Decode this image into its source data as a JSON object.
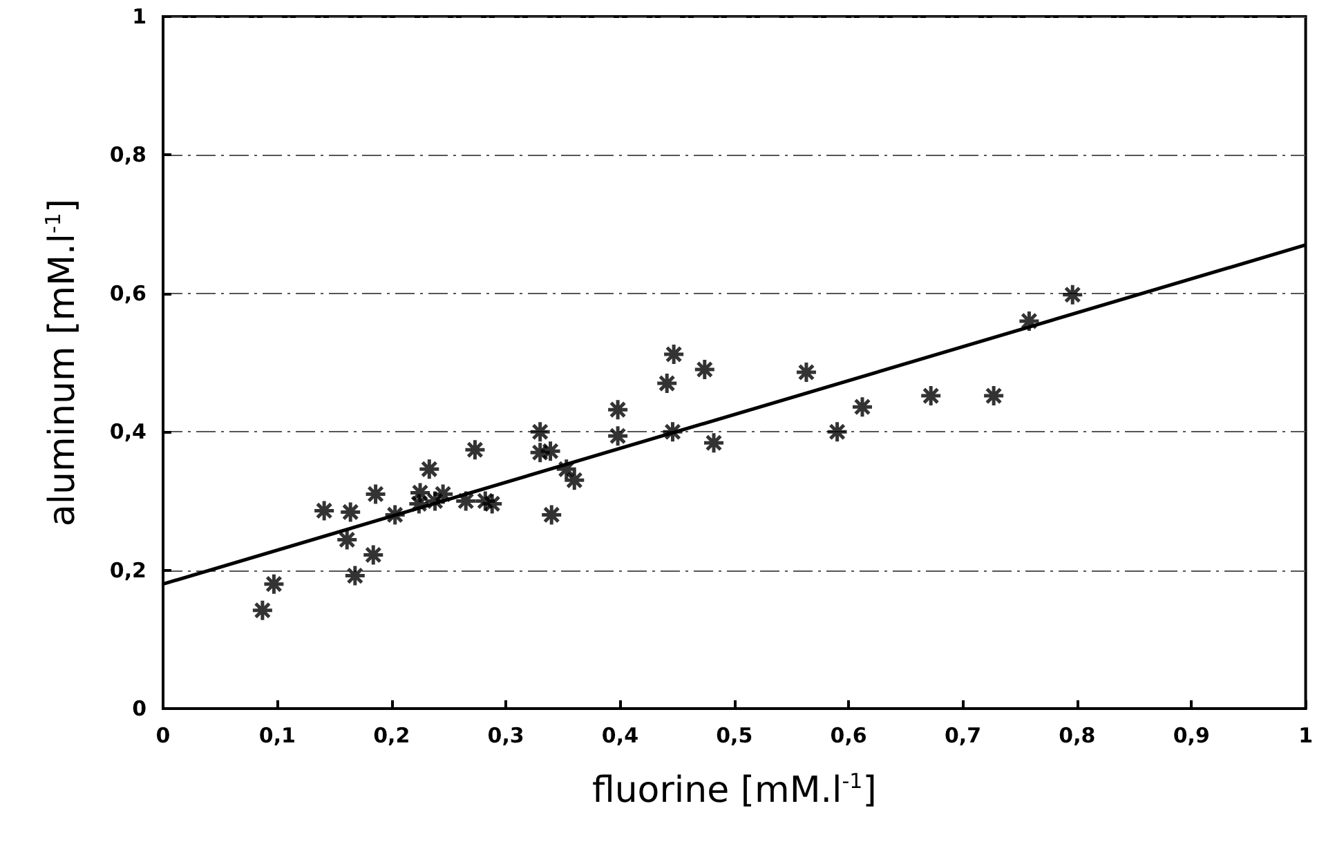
{
  "chart_data": {
    "type": "scatter",
    "xlabel": "fluorine [mM.l$^{-1}$]",
    "ylabel": "aluminum [mM.l$^{-1}$]",
    "marker": "cross",
    "grid": "y",
    "xlim": [
      0,
      1
    ],
    "ylim": [
      0,
      1
    ],
    "xticks": [
      0,
      {
        "value": 0.1,
        "label": "0,1"
      },
      {
        "value": 0.2,
        "label": "0,2"
      },
      {
        "value": 0.3,
        "label": "0,3"
      },
      {
        "value": 0.4,
        "label": "0,4"
      },
      {
        "value": 0.5,
        "label": "0,5"
      },
      {
        "value": 0.6,
        "label": "0,6"
      },
      {
        "value": 0.7,
        "label": "0,7"
      },
      {
        "value": 0.8,
        "label": "0,8"
      },
      {
        "value": 0.9,
        "label": "0,9"
      },
      1
    ],
    "yticks": [
      0,
      {
        "value": 0.2,
        "label": "0,2"
      },
      {
        "value": 0.4,
        "label": "0,4"
      },
      {
        "value": 0.6,
        "label": "0,6"
      },
      {
        "value": 0.8,
        "label": "0,8"
      },
      1
    ],
    "series": [
      {
        "color": "#000000",
        "x": [
          0.087,
          0.097,
          0.141,
          0.164,
          0.161,
          0.168,
          0.184,
          0.186,
          0.203,
          0.225,
          0.224,
          0.233,
          0.238,
          0.245,
          0.265,
          0.273,
          0.282,
          0.288,
          0.33,
          0.33,
          0.339,
          0.34,
          0.353,
          0.36,
          0.398,
          0.398,
          0.441,
          0.447,
          0.446,
          0.474,
          0.482,
          0.563,
          0.59,
          0.612,
          0.672,
          0.727,
          0.758,
          0.796
        ],
        "values": [
          0.142,
          0.18,
          0.286,
          0.284,
          0.244,
          0.192,
          0.222,
          0.31,
          0.28,
          0.312,
          0.296,
          0.346,
          0.3,
          0.31,
          0.3,
          0.374,
          0.3,
          0.296,
          0.4,
          0.37,
          0.372,
          0.28,
          0.346,
          0.33,
          0.432,
          0.394,
          0.47,
          0.512,
          0.4,
          0.49,
          0.384,
          0.486,
          0.4,
          0.436,
          0.452,
          0.452,
          0.56,
          0.598
        ]
      },
      {
        "type": "line",
        "color": "#000000",
        "marker": "none",
        "line_style": "solid",
        "x": [
          0,
          1
        ],
        "values": [
          0.18,
          0.67
        ]
      }
    ]
  }
}
